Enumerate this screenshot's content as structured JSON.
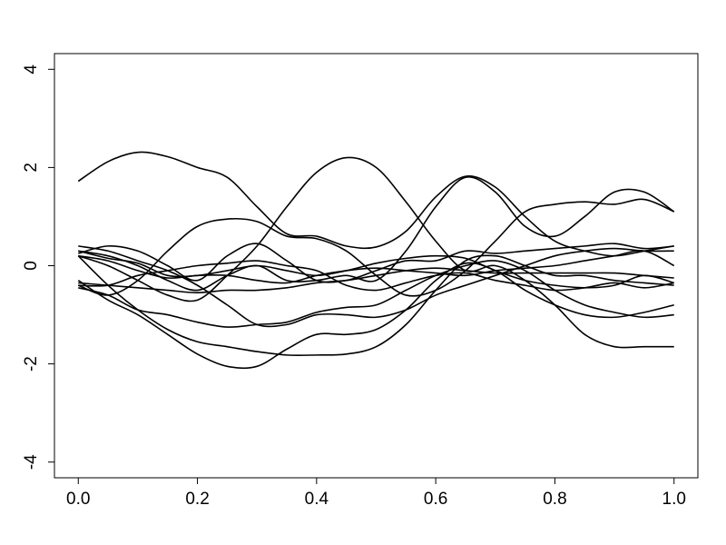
{
  "chart_data": {
    "type": "line",
    "x": [
      0,
      0.05,
      0.1,
      0.15,
      0.2,
      0.25,
      0.3,
      0.35,
      0.4,
      0.45,
      0.5,
      0.55,
      0.6,
      0.65,
      0.7,
      0.75,
      0.8,
      0.85,
      0.9,
      0.95,
      1
    ],
    "series": [
      {
        "color": "#000000",
        "values": [
          1.72,
          2.12,
          2.31,
          2.22,
          2.0,
          1.8,
          1.2,
          0.65,
          0.6,
          0.4,
          0.38,
          0.7,
          1.4,
          1.82,
          1.6,
          1.0,
          0.5,
          0.3,
          0.2,
          0.3,
          0.4
        ]
      },
      {
        "color": "#000000",
        "values": [
          0.2,
          0.0,
          -0.3,
          -0.6,
          -0.7,
          -0.2,
          0.4,
          1.2,
          1.9,
          2.2,
          2.0,
          1.3,
          0.5,
          -0.1,
          0.0,
          -0.3,
          -0.8,
          -1.4,
          -1.65,
          -1.65,
          -1.65
        ]
      },
      {
        "color": "#000000",
        "values": [
          0.3,
          0.2,
          0.0,
          -0.3,
          -0.5,
          -0.2,
          0.0,
          -0.3,
          -0.3,
          -0.2,
          -0.3,
          0.3,
          1.2,
          1.8,
          1.5,
          0.8,
          0.6,
          1.0,
          1.5,
          1.5,
          1.1
        ]
      },
      {
        "color": "#000000",
        "values": [
          -0.4,
          -0.6,
          -0.3,
          0.3,
          0.8,
          0.95,
          0.9,
          0.6,
          0.55,
          0.3,
          -0.2,
          -0.6,
          -0.5,
          -0.1,
          0.5,
          1.1,
          1.25,
          1.3,
          1.25,
          1.35,
          1.1
        ]
      },
      {
        "color": "#000000",
        "values": [
          -0.3,
          -0.7,
          -1.0,
          -1.4,
          -1.8,
          -2.05,
          -2.05,
          -1.7,
          -1.4,
          -1.4,
          -1.3,
          -0.9,
          -0.3,
          0.05,
          -0.1,
          -0.5,
          -0.8,
          -1.0,
          -1.05,
          -0.95,
          -0.8
        ]
      },
      {
        "color": "#000000",
        "values": [
          0.2,
          -0.4,
          -0.9,
          -1.3,
          -1.55,
          -1.65,
          -1.75,
          -1.82,
          -1.82,
          -1.8,
          -1.65,
          -1.2,
          -0.5,
          0.1,
          0.2,
          0.0,
          -0.2,
          -0.2,
          -0.3,
          -0.35,
          -0.4
        ]
      },
      {
        "color": "#000000",
        "values": [
          0.4,
          0.3,
          0.1,
          -0.1,
          -0.4,
          -0.8,
          -1.2,
          -1.2,
          -1.0,
          -1.0,
          -1.05,
          -0.9,
          -0.6,
          -0.4,
          -0.2,
          0.0,
          0.2,
          0.3,
          0.35,
          0.3,
          0.3
        ]
      },
      {
        "color": "#000000",
        "values": [
          -0.45,
          -0.6,
          -0.9,
          -1.0,
          -1.15,
          -1.25,
          -1.2,
          -1.15,
          -0.95,
          -0.85,
          -0.8,
          -0.5,
          -0.2,
          0.0,
          0.1,
          -0.1,
          -0.5,
          -0.8,
          -0.95,
          -1.05,
          -1.0
        ]
      },
      {
        "color": "#000000",
        "values": [
          0.25,
          0.4,
          0.3,
          0.0,
          -0.3,
          0.2,
          0.45,
          0.1,
          -0.3,
          -0.3,
          -0.1,
          0.1,
          0.1,
          0.3,
          0.25,
          0.3,
          0.35,
          0.4,
          0.45,
          0.35,
          0.4
        ]
      },
      {
        "color": "#000000",
        "values": [
          0.2,
          0.1,
          -0.1,
          -0.25,
          -0.2,
          -0.2,
          -0.3,
          -0.35,
          -0.2,
          -0.1,
          -0.05,
          -0.1,
          -0.15,
          -0.2,
          -0.1,
          -0.05,
          0.0,
          0.1,
          0.2,
          0.3,
          0.0
        ]
      },
      {
        "color": "#000000",
        "values": [
          -0.35,
          -0.4,
          -0.45,
          -0.5,
          -0.55,
          -0.5,
          -0.5,
          -0.45,
          -0.35,
          -0.3,
          -0.2,
          -0.1,
          -0.05,
          -0.1,
          -0.15,
          -0.15,
          -0.15,
          -0.15,
          -0.15,
          -0.2,
          -0.25
        ]
      },
      {
        "color": "#000000",
        "values": [
          0.3,
          0.15,
          0.05,
          -0.2,
          -0.2,
          -0.1,
          0.0,
          -0.1,
          -0.2,
          -0.1,
          0.05,
          0.15,
          0.2,
          0.15,
          -0.1,
          -0.3,
          -0.4,
          -0.45,
          -0.4,
          -0.2,
          -0.35
        ]
      },
      {
        "color": "#000000",
        "values": [
          -0.4,
          -0.4,
          -0.2,
          -0.1,
          0.0,
          0.05,
          0.1,
          0.0,
          -0.1,
          -0.4,
          -0.5,
          -0.35,
          -0.2,
          -0.15,
          -0.3,
          -0.4,
          -0.5,
          -0.45,
          -0.35,
          -0.45,
          -0.35
        ]
      }
    ],
    "xlim": [
      -0.04,
      1.04
    ],
    "ylim": [
      -4.32,
      4.32
    ],
    "xticks": [
      {
        "value": 0,
        "label": "0.0"
      },
      {
        "value": 0.2,
        "label": "0.2"
      },
      {
        "value": 0.4,
        "label": "0.4"
      },
      {
        "value": 0.6,
        "label": "0.6"
      },
      {
        "value": 0.8,
        "label": "0.8"
      },
      {
        "value": 1,
        "label": "1.0"
      }
    ],
    "yticks": [
      -4,
      -2,
      0,
      2,
      4
    ]
  }
}
